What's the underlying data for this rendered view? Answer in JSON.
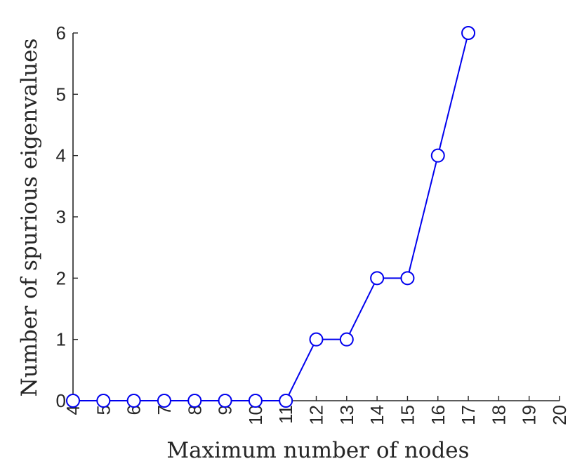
{
  "chart_data": {
    "type": "line",
    "title": "",
    "xlabel": "Maximum number of nodes",
    "ylabel": "Number of spurious eigenvalues",
    "xlim": [
      4,
      20
    ],
    "ylim": [
      0,
      6
    ],
    "xticks": [
      "4",
      "5",
      "6",
      "7",
      "8",
      "9",
      "10",
      "11",
      "12",
      "13",
      "14",
      "15",
      "16",
      "17",
      "18",
      "19",
      "20"
    ],
    "yticks": [
      "0",
      "1",
      "2",
      "3",
      "4",
      "5",
      "6"
    ],
    "grid": false,
    "legend": "none",
    "series": [
      {
        "color": "#0000ee",
        "marker": "open-circle",
        "x": [
          4,
          5,
          6,
          7,
          8,
          9,
          10,
          11,
          12,
          13,
          14,
          15,
          16,
          17
        ],
        "y": [
          0,
          0,
          0,
          0,
          0,
          0,
          0,
          0,
          1,
          1,
          2,
          2,
          4,
          6
        ]
      }
    ],
    "axis_color": "#262626"
  }
}
